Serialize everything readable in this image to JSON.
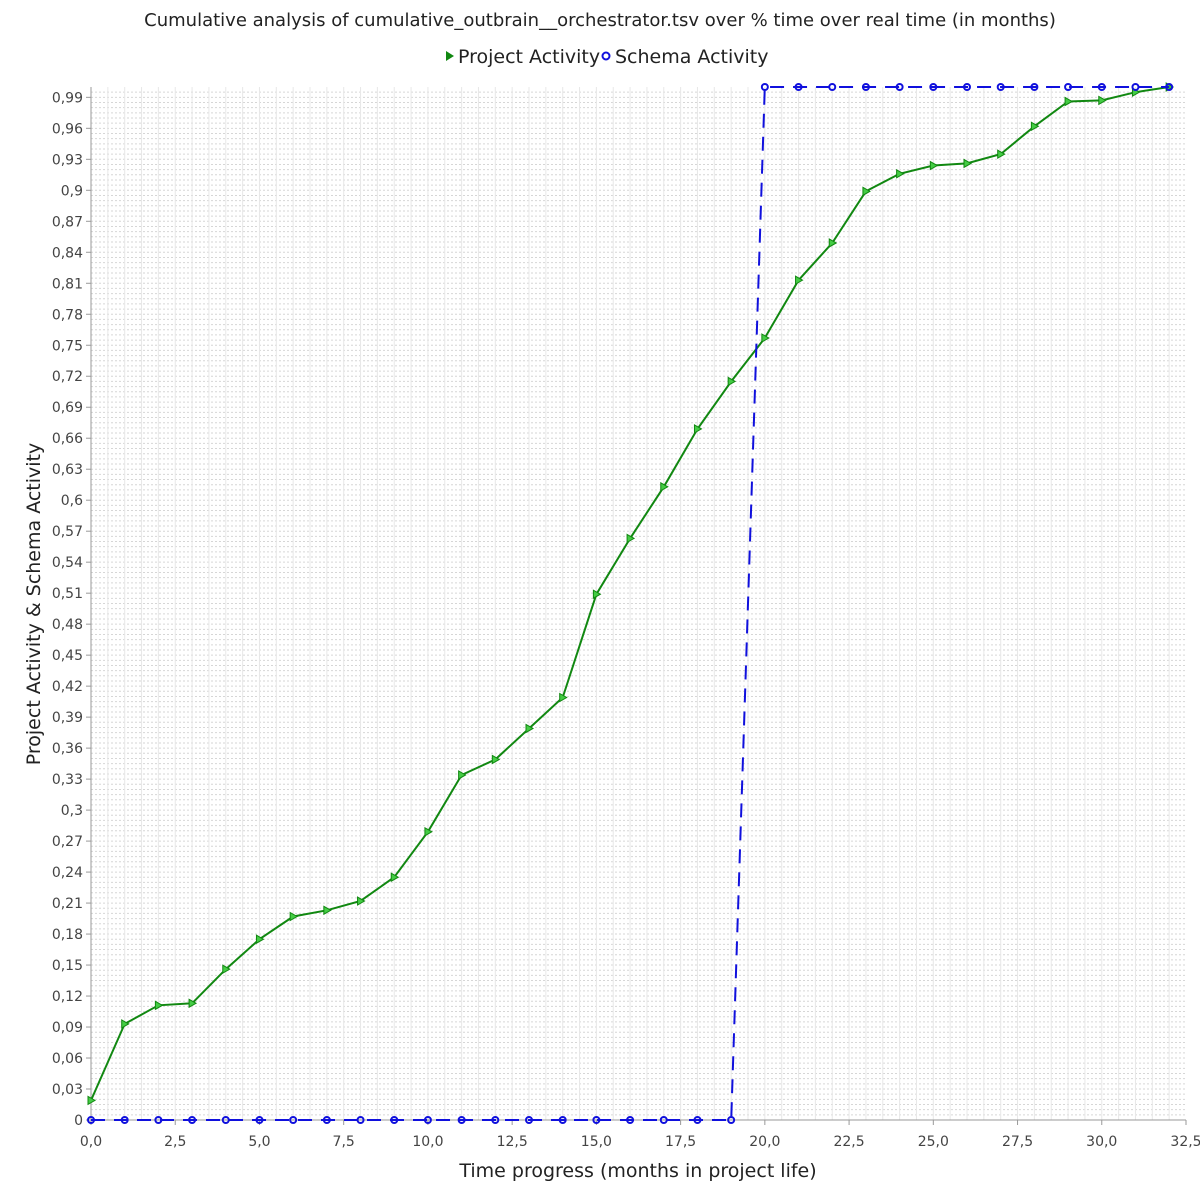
{
  "chart_data": {
    "type": "line",
    "title": "Cumulative analysis of cumulative_outbrain__orchestrator.tsv over % time over real time (in months)",
    "xlabel": "Time progress (months in project life)",
    "ylabel": "Project Activity & Schema Activity",
    "xlim": [
      0,
      32.5
    ],
    "ylim": [
      0,
      1.0
    ],
    "x_ticks": [
      "0,0",
      "2,5",
      "5,0",
      "7,5",
      "10,0",
      "12,5",
      "15,0",
      "17,5",
      "20,0",
      "22,5",
      "25,0",
      "27,5",
      "30,0",
      "32,5"
    ],
    "y_ticks": [
      "0",
      "0,03",
      "0,06",
      "0,09",
      "0,12",
      "0,15",
      "0,18",
      "0,21",
      "0,24",
      "0,27",
      "0,3",
      "0,33",
      "0,36",
      "0,39",
      "0,42",
      "0,45",
      "0,48",
      "0,51",
      "0,54",
      "0,57",
      "0,6",
      "0,63",
      "0,66",
      "0,69",
      "0,72",
      "0,75",
      "0,78",
      "0,81",
      "0,84",
      "0,87",
      "0,9",
      "0,93",
      "0,96",
      "0,99"
    ],
    "grid": true,
    "legend_position": "top-center",
    "series": [
      {
        "name": "Project Activity",
        "color": "#118811",
        "marker": "triangle-right",
        "dash": "solid",
        "x": [
          0,
          1,
          2,
          3,
          4,
          5,
          6,
          7,
          8,
          9,
          10,
          11,
          12,
          13,
          14,
          15,
          16,
          17,
          18,
          19,
          20,
          21,
          22,
          23,
          24,
          25,
          26,
          27,
          28,
          29,
          30,
          31,
          32
        ],
        "y": [
          0.019,
          0.093,
          0.111,
          0.113,
          0.146,
          0.175,
          0.197,
          0.203,
          0.212,
          0.235,
          0.279,
          0.334,
          0.349,
          0.379,
          0.409,
          0.509,
          0.563,
          0.613,
          0.669,
          0.715,
          0.757,
          0.813,
          0.849,
          0.899,
          0.916,
          0.924,
          0.926,
          0.935,
          0.962,
          0.986,
          0.987,
          0.995,
          1.0
        ]
      },
      {
        "name": "Schema Activity",
        "color": "#1010dd",
        "marker": "circle",
        "dash": "dashed",
        "x": [
          0,
          1,
          2,
          3,
          4,
          5,
          6,
          7,
          8,
          9,
          10,
          11,
          12,
          13,
          14,
          15,
          16,
          17,
          18,
          19,
          20,
          21,
          22,
          23,
          24,
          25,
          26,
          27,
          28,
          29,
          30,
          31,
          32
        ],
        "y": [
          0,
          0,
          0,
          0,
          0,
          0,
          0,
          0,
          0,
          0,
          0,
          0,
          0,
          0,
          0,
          0,
          0,
          0,
          0,
          0,
          1,
          1,
          1,
          1,
          1,
          1,
          1,
          1,
          1,
          1,
          1,
          1,
          1
        ]
      }
    ]
  }
}
